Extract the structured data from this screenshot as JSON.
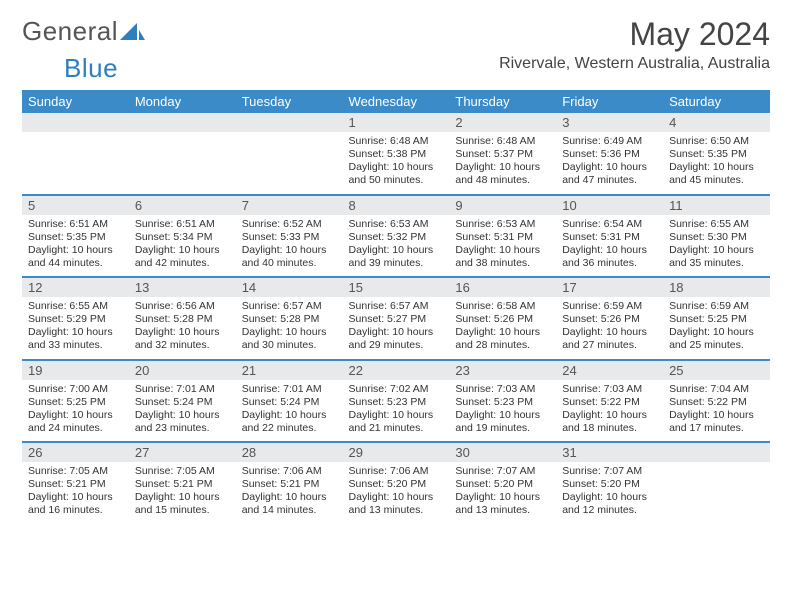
{
  "brand": {
    "word1": "General",
    "word2": "Blue"
  },
  "title": "May 2024",
  "location": "Rivervale, Western Australia, Australia",
  "header_bg": "#3b8bc9",
  "daynum_bg": "#e8e9eb",
  "rule_color": "#3b8bc9",
  "dow": [
    "Sunday",
    "Monday",
    "Tuesday",
    "Wednesday",
    "Thursday",
    "Friday",
    "Saturday"
  ],
  "weeks": [
    [
      null,
      null,
      null,
      {
        "n": "1",
        "sr": "6:48 AM",
        "ss": "5:38 PM",
        "dl": "10 hours and 50 minutes."
      },
      {
        "n": "2",
        "sr": "6:48 AM",
        "ss": "5:37 PM",
        "dl": "10 hours and 48 minutes."
      },
      {
        "n": "3",
        "sr": "6:49 AM",
        "ss": "5:36 PM",
        "dl": "10 hours and 47 minutes."
      },
      {
        "n": "4",
        "sr": "6:50 AM",
        "ss": "5:35 PM",
        "dl": "10 hours and 45 minutes."
      }
    ],
    [
      {
        "n": "5",
        "sr": "6:51 AM",
        "ss": "5:35 PM",
        "dl": "10 hours and 44 minutes."
      },
      {
        "n": "6",
        "sr": "6:51 AM",
        "ss": "5:34 PM",
        "dl": "10 hours and 42 minutes."
      },
      {
        "n": "7",
        "sr": "6:52 AM",
        "ss": "5:33 PM",
        "dl": "10 hours and 40 minutes."
      },
      {
        "n": "8",
        "sr": "6:53 AM",
        "ss": "5:32 PM",
        "dl": "10 hours and 39 minutes."
      },
      {
        "n": "9",
        "sr": "6:53 AM",
        "ss": "5:31 PM",
        "dl": "10 hours and 38 minutes."
      },
      {
        "n": "10",
        "sr": "6:54 AM",
        "ss": "5:31 PM",
        "dl": "10 hours and 36 minutes."
      },
      {
        "n": "11",
        "sr": "6:55 AM",
        "ss": "5:30 PM",
        "dl": "10 hours and 35 minutes."
      }
    ],
    [
      {
        "n": "12",
        "sr": "6:55 AM",
        "ss": "5:29 PM",
        "dl": "10 hours and 33 minutes."
      },
      {
        "n": "13",
        "sr": "6:56 AM",
        "ss": "5:28 PM",
        "dl": "10 hours and 32 minutes."
      },
      {
        "n": "14",
        "sr": "6:57 AM",
        "ss": "5:28 PM",
        "dl": "10 hours and 30 minutes."
      },
      {
        "n": "15",
        "sr": "6:57 AM",
        "ss": "5:27 PM",
        "dl": "10 hours and 29 minutes."
      },
      {
        "n": "16",
        "sr": "6:58 AM",
        "ss": "5:26 PM",
        "dl": "10 hours and 28 minutes."
      },
      {
        "n": "17",
        "sr": "6:59 AM",
        "ss": "5:26 PM",
        "dl": "10 hours and 27 minutes."
      },
      {
        "n": "18",
        "sr": "6:59 AM",
        "ss": "5:25 PM",
        "dl": "10 hours and 25 minutes."
      }
    ],
    [
      {
        "n": "19",
        "sr": "7:00 AM",
        "ss": "5:25 PM",
        "dl": "10 hours and 24 minutes."
      },
      {
        "n": "20",
        "sr": "7:01 AM",
        "ss": "5:24 PM",
        "dl": "10 hours and 23 minutes."
      },
      {
        "n": "21",
        "sr": "7:01 AM",
        "ss": "5:24 PM",
        "dl": "10 hours and 22 minutes."
      },
      {
        "n": "22",
        "sr": "7:02 AM",
        "ss": "5:23 PM",
        "dl": "10 hours and 21 minutes."
      },
      {
        "n": "23",
        "sr": "7:03 AM",
        "ss": "5:23 PM",
        "dl": "10 hours and 19 minutes."
      },
      {
        "n": "24",
        "sr": "7:03 AM",
        "ss": "5:22 PM",
        "dl": "10 hours and 18 minutes."
      },
      {
        "n": "25",
        "sr": "7:04 AM",
        "ss": "5:22 PM",
        "dl": "10 hours and 17 minutes."
      }
    ],
    [
      {
        "n": "26",
        "sr": "7:05 AM",
        "ss": "5:21 PM",
        "dl": "10 hours and 16 minutes."
      },
      {
        "n": "27",
        "sr": "7:05 AM",
        "ss": "5:21 PM",
        "dl": "10 hours and 15 minutes."
      },
      {
        "n": "28",
        "sr": "7:06 AM",
        "ss": "5:21 PM",
        "dl": "10 hours and 14 minutes."
      },
      {
        "n": "29",
        "sr": "7:06 AM",
        "ss": "5:20 PM",
        "dl": "10 hours and 13 minutes."
      },
      {
        "n": "30",
        "sr": "7:07 AM",
        "ss": "5:20 PM",
        "dl": "10 hours and 13 minutes."
      },
      {
        "n": "31",
        "sr": "7:07 AM",
        "ss": "5:20 PM",
        "dl": "10 hours and 12 minutes."
      },
      null
    ]
  ],
  "labels": {
    "sunrise": "Sunrise:",
    "sunset": "Sunset:",
    "daylight": "Daylight:"
  }
}
